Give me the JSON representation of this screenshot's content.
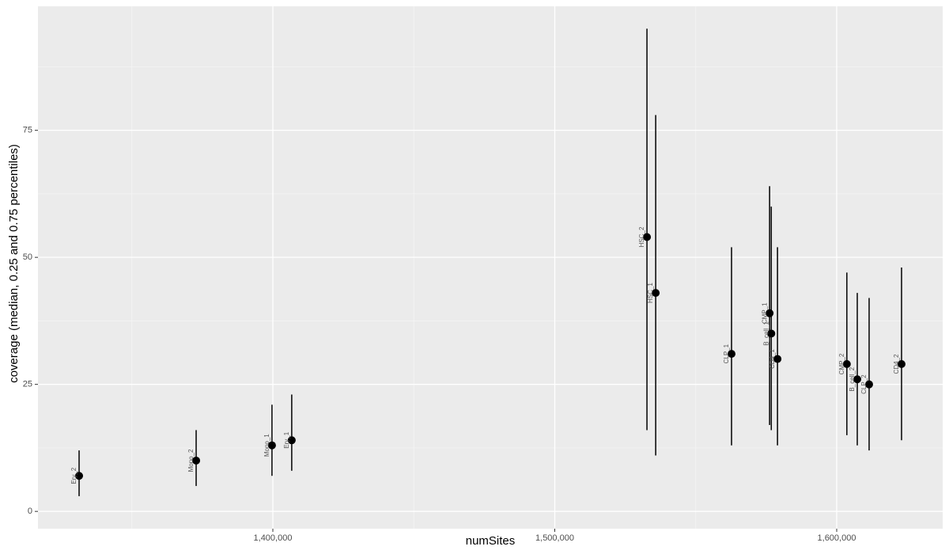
{
  "chart_data": {
    "type": "pointrange",
    "x_label": "numSites",
    "y_label": "coverage (median, 0.25 and 0.75 percentiles)",
    "xlim": [
      1316690,
      1637590
    ],
    "ylim": [
      -3.4,
      99.4
    ],
    "xticks": [
      {
        "value": 1400000,
        "label": "1,400,000"
      },
      {
        "value": 1500000,
        "label": "1,500,000"
      },
      {
        "value": 1600000,
        "label": "1,600,000"
      }
    ],
    "yticks": [
      0,
      25,
      50,
      75
    ],
    "x_minor_grid": [
      1350000,
      1450000,
      1550000
    ],
    "y_minor_grid": [
      12.5,
      37.5,
      62.5,
      87.5
    ],
    "grid": true,
    "color": "#000000",
    "labels": [
      "Ery_2",
      "Mono_2",
      "Mono_1",
      "Ery_1",
      "HSC_2",
      "HSC_1",
      "CLP_1",
      "CMP_1",
      "B_cell_1",
      "CD4_1",
      "CMP_2",
      "B_cell_2",
      "CLP_2",
      "CD4_2"
    ],
    "x": [
      1331280,
      1372800,
      1399700,
      1406700,
      1532700,
      1535800,
      1562700,
      1576200,
      1576800,
      1579000,
      1603600,
      1607300,
      1611500,
      1623000
    ],
    "values": [
      7,
      10,
      13,
      14,
      54,
      43,
      31,
      39,
      35,
      30,
      29,
      26,
      25,
      29
    ],
    "low": [
      3,
      5,
      7,
      8,
      16,
      11,
      13,
      17,
      16,
      13,
      15,
      13,
      12,
      14
    ],
    "high": [
      12,
      16,
      21,
      23,
      95,
      78,
      52,
      64,
      60,
      52,
      47,
      43,
      42,
      48
    ]
  }
}
